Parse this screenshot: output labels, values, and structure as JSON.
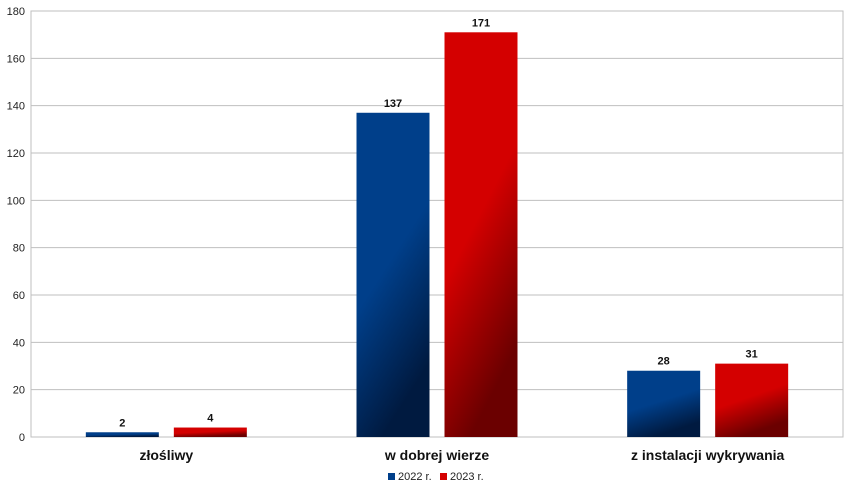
{
  "chart_data": {
    "type": "bar",
    "categories": [
      "złośliwy",
      "w dobrej wierze",
      "z instalacji wykrywania"
    ],
    "series": [
      {
        "name": "2022 r.",
        "values": [
          2,
          137,
          28
        ],
        "color": "#003f8a",
        "color_dark": "#001a40"
      },
      {
        "name": "2023 r.",
        "values": [
          4,
          171,
          31
        ],
        "color": "#d40000",
        "color_dark": "#6b0000"
      }
    ],
    "ylim": [
      0,
      180
    ],
    "yticks": [
      0,
      20,
      40,
      60,
      80,
      100,
      120,
      140,
      160,
      180
    ],
    "grid": true,
    "legend": "bottom-center",
    "title": "",
    "xlabel": "",
    "ylabel": ""
  }
}
